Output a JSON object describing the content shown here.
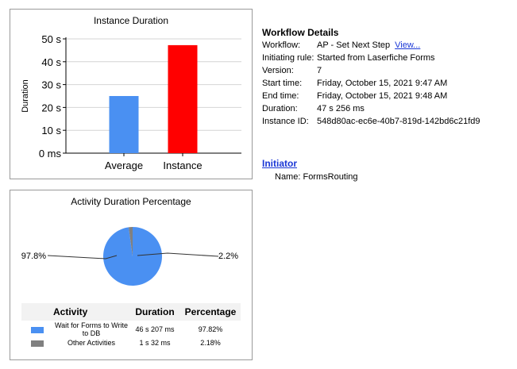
{
  "chart_data": [
    {
      "type": "bar",
      "title": "Instance Duration",
      "ylabel": "Duration",
      "xlabel": "",
      "categories": [
        "Average",
        "Instance"
      ],
      "values": [
        25,
        47.256
      ],
      "colors": [
        "#4a90f2",
        "#ff0000"
      ],
      "ylim": [
        0,
        50
      ],
      "yticks": [
        0,
        10,
        20,
        30,
        40,
        50
      ],
      "ytick_labels": [
        "0 ms",
        "10 s",
        "20 s",
        "30 s",
        "40 s",
        "50 s"
      ],
      "grid": true
    },
    {
      "type": "pie",
      "title": "Activity Duration Percentage",
      "slices": [
        {
          "label": "97.8%",
          "value": 97.82,
          "color": "#4a90f2"
        },
        {
          "label": "2.2%",
          "value": 2.18,
          "color": "#808080"
        }
      ]
    }
  ],
  "legend_table": {
    "headers": [
      "Activity",
      "Duration",
      "Percentage"
    ],
    "rows": [
      {
        "activity": "Wait for Forms to Write to DB",
        "duration": "46 s 207 ms",
        "percentage": "97.82%",
        "color": "#4a90f2"
      },
      {
        "activity": "Other Activities",
        "duration": "1 s 32 ms",
        "percentage": "2.18%",
        "color": "#808080"
      }
    ]
  },
  "workflow_details": {
    "title": "Workflow Details",
    "rows": [
      {
        "label": "Workflow:",
        "value": "AP - Set Next Step",
        "link": "View..."
      },
      {
        "label": "Initiating rule:",
        "value": "Started from Laserfiche Forms"
      },
      {
        "label": "Version:",
        "value": "7"
      },
      {
        "label": "Start time:",
        "value": "Friday, October 15, 2021 9:47 AM"
      },
      {
        "label": "End time:",
        "value": "Friday, October 15, 2021 9:48 AM"
      },
      {
        "label": "Duration:",
        "value": "47 s 256 ms"
      },
      {
        "label": "Instance ID:",
        "value": "548d80ac-ec6e-40b7-819d-142bd6c21fd9"
      }
    ]
  },
  "initiator": {
    "title": "Initiator",
    "name_label": "Name:",
    "name_value": "FormsRouting"
  }
}
